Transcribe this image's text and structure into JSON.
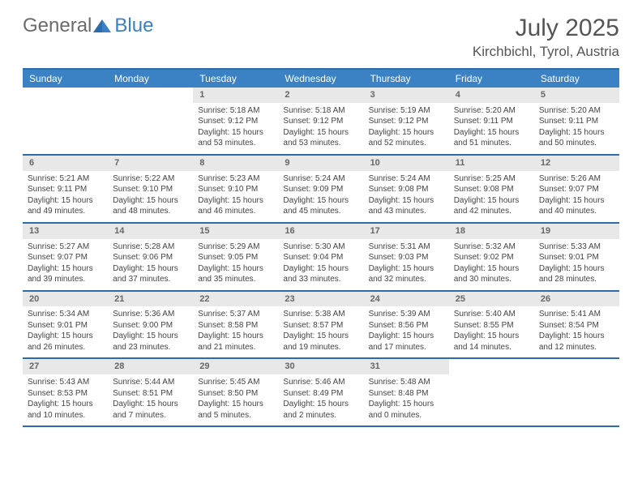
{
  "logo": {
    "text1": "General",
    "text2": "Blue"
  },
  "title": "July 2025",
  "location": "Kirchbichl, Tyrol, Austria",
  "colors": {
    "header_bg": "#3b82c4",
    "header_border": "#2d6ca8",
    "daynum_bg": "#e8e8e8",
    "text": "#444444",
    "logo_gray": "#6b6b6b",
    "logo_blue": "#3b7fc4"
  },
  "weekdays": [
    "Sunday",
    "Monday",
    "Tuesday",
    "Wednesday",
    "Thursday",
    "Friday",
    "Saturday"
  ],
  "weeks": [
    [
      null,
      null,
      {
        "n": "1",
        "sr": "5:18 AM",
        "ss": "9:12 PM",
        "dl": "15 hours and 53 minutes."
      },
      {
        "n": "2",
        "sr": "5:18 AM",
        "ss": "9:12 PM",
        "dl": "15 hours and 53 minutes."
      },
      {
        "n": "3",
        "sr": "5:19 AM",
        "ss": "9:12 PM",
        "dl": "15 hours and 52 minutes."
      },
      {
        "n": "4",
        "sr": "5:20 AM",
        "ss": "9:11 PM",
        "dl": "15 hours and 51 minutes."
      },
      {
        "n": "5",
        "sr": "5:20 AM",
        "ss": "9:11 PM",
        "dl": "15 hours and 50 minutes."
      }
    ],
    [
      {
        "n": "6",
        "sr": "5:21 AM",
        "ss": "9:11 PM",
        "dl": "15 hours and 49 minutes."
      },
      {
        "n": "7",
        "sr": "5:22 AM",
        "ss": "9:10 PM",
        "dl": "15 hours and 48 minutes."
      },
      {
        "n": "8",
        "sr": "5:23 AM",
        "ss": "9:10 PM",
        "dl": "15 hours and 46 minutes."
      },
      {
        "n": "9",
        "sr": "5:24 AM",
        "ss": "9:09 PM",
        "dl": "15 hours and 45 minutes."
      },
      {
        "n": "10",
        "sr": "5:24 AM",
        "ss": "9:08 PM",
        "dl": "15 hours and 43 minutes."
      },
      {
        "n": "11",
        "sr": "5:25 AM",
        "ss": "9:08 PM",
        "dl": "15 hours and 42 minutes."
      },
      {
        "n": "12",
        "sr": "5:26 AM",
        "ss": "9:07 PM",
        "dl": "15 hours and 40 minutes."
      }
    ],
    [
      {
        "n": "13",
        "sr": "5:27 AM",
        "ss": "9:07 PM",
        "dl": "15 hours and 39 minutes."
      },
      {
        "n": "14",
        "sr": "5:28 AM",
        "ss": "9:06 PM",
        "dl": "15 hours and 37 minutes."
      },
      {
        "n": "15",
        "sr": "5:29 AM",
        "ss": "9:05 PM",
        "dl": "15 hours and 35 minutes."
      },
      {
        "n": "16",
        "sr": "5:30 AM",
        "ss": "9:04 PM",
        "dl": "15 hours and 33 minutes."
      },
      {
        "n": "17",
        "sr": "5:31 AM",
        "ss": "9:03 PM",
        "dl": "15 hours and 32 minutes."
      },
      {
        "n": "18",
        "sr": "5:32 AM",
        "ss": "9:02 PM",
        "dl": "15 hours and 30 minutes."
      },
      {
        "n": "19",
        "sr": "5:33 AM",
        "ss": "9:01 PM",
        "dl": "15 hours and 28 minutes."
      }
    ],
    [
      {
        "n": "20",
        "sr": "5:34 AM",
        "ss": "9:01 PM",
        "dl": "15 hours and 26 minutes."
      },
      {
        "n": "21",
        "sr": "5:36 AM",
        "ss": "9:00 PM",
        "dl": "15 hours and 23 minutes."
      },
      {
        "n": "22",
        "sr": "5:37 AM",
        "ss": "8:58 PM",
        "dl": "15 hours and 21 minutes."
      },
      {
        "n": "23",
        "sr": "5:38 AM",
        "ss": "8:57 PM",
        "dl": "15 hours and 19 minutes."
      },
      {
        "n": "24",
        "sr": "5:39 AM",
        "ss": "8:56 PM",
        "dl": "15 hours and 17 minutes."
      },
      {
        "n": "25",
        "sr": "5:40 AM",
        "ss": "8:55 PM",
        "dl": "15 hours and 14 minutes."
      },
      {
        "n": "26",
        "sr": "5:41 AM",
        "ss": "8:54 PM",
        "dl": "15 hours and 12 minutes."
      }
    ],
    [
      {
        "n": "27",
        "sr": "5:43 AM",
        "ss": "8:53 PM",
        "dl": "15 hours and 10 minutes."
      },
      {
        "n": "28",
        "sr": "5:44 AM",
        "ss": "8:51 PM",
        "dl": "15 hours and 7 minutes."
      },
      {
        "n": "29",
        "sr": "5:45 AM",
        "ss": "8:50 PM",
        "dl": "15 hours and 5 minutes."
      },
      {
        "n": "30",
        "sr": "5:46 AM",
        "ss": "8:49 PM",
        "dl": "15 hours and 2 minutes."
      },
      {
        "n": "31",
        "sr": "5:48 AM",
        "ss": "8:48 PM",
        "dl": "15 hours and 0 minutes."
      },
      null,
      null
    ]
  ],
  "labels": {
    "sunrise": "Sunrise:",
    "sunset": "Sunset:",
    "daylight": "Daylight:"
  }
}
